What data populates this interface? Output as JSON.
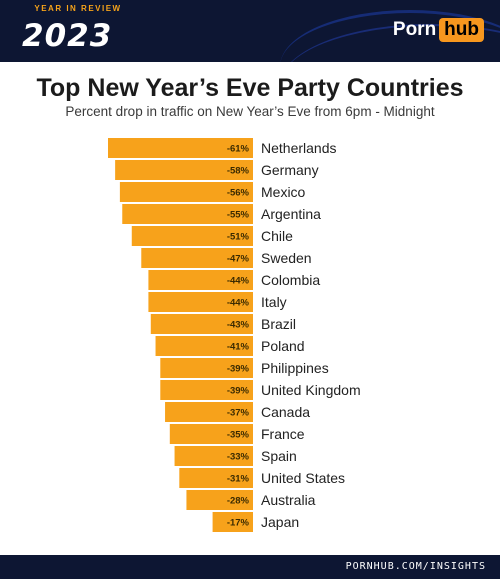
{
  "header": {
    "badge_small": "YEAR IN REVIEW",
    "badge_year": "2023",
    "logo_part1": "Porn",
    "logo_part2": "hub"
  },
  "colors": {
    "bar": "#f7a21b",
    "header_bg": "#0d1633",
    "accent": "#f6a31a"
  },
  "chart_data": {
    "type": "bar",
    "orientation": "horizontal",
    "title": "Top New Year’s Eve Party Countries",
    "subtitle": "Percent drop in traffic on New Year’s Eve from 6pm - Midnight",
    "categories": [
      "Netherlands",
      "Germany",
      "Mexico",
      "Argentina",
      "Chile",
      "Sweden",
      "Colombia",
      "Italy",
      "Brazil",
      "Poland",
      "Philippines",
      "United Kingdom",
      "Canada",
      "France",
      "Spain",
      "United States",
      "Australia",
      "Japan"
    ],
    "values": [
      -61,
      -58,
      -56,
      -55,
      -51,
      -47,
      -44,
      -44,
      -43,
      -41,
      -39,
      -39,
      -37,
      -35,
      -33,
      -31,
      -28,
      -17
    ],
    "value_labels": [
      "-61%",
      "-58%",
      "-56%",
      "-55%",
      "-51%",
      "-47%",
      "-44%",
      "-44%",
      "-43%",
      "-41%",
      "-39%",
      "-39%",
      "-37%",
      "-35%",
      "-33%",
      "-31%",
      "-28%",
      "-17%"
    ],
    "xlim": [
      -61,
      0
    ],
    "grid": false,
    "legend": "none"
  },
  "footer": {
    "link": "PORNHUB.COM/INSIGHTS"
  }
}
